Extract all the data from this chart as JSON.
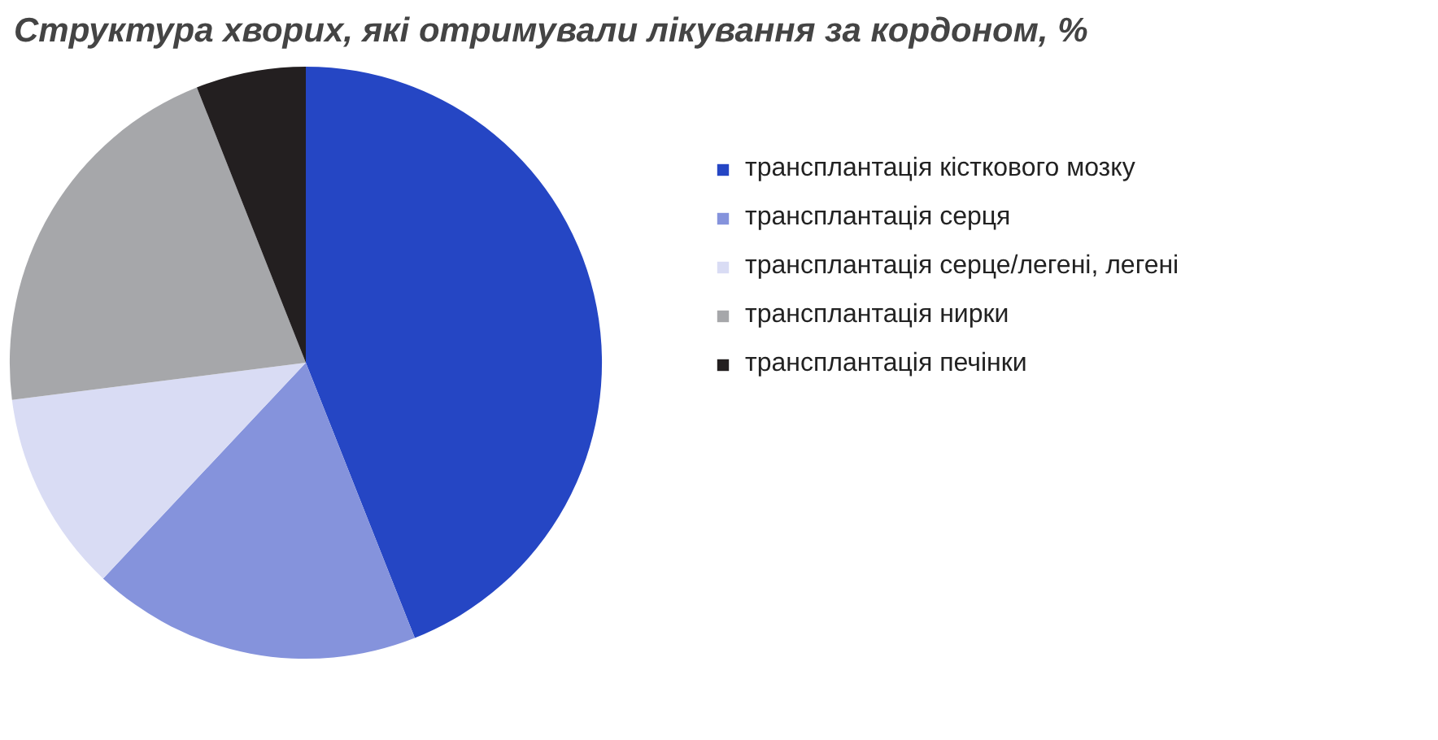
{
  "chart_data": {
    "type": "pie",
    "title": "Структура хворих, які отримували лікування за кордоном, %",
    "categories": [
      "трансплантація кісткового мозку",
      "трансплантація серця",
      "трансплантація серце/легені, легені",
      "трансплантація нирки",
      "трансплантація печінки"
    ],
    "values": [
      44,
      18,
      11,
      21,
      6
    ],
    "colors": [
      "#2546c4",
      "#8593dc",
      "#d9dcf4",
      "#a6a7aa",
      "#231f20"
    ],
    "legend": "right"
  }
}
